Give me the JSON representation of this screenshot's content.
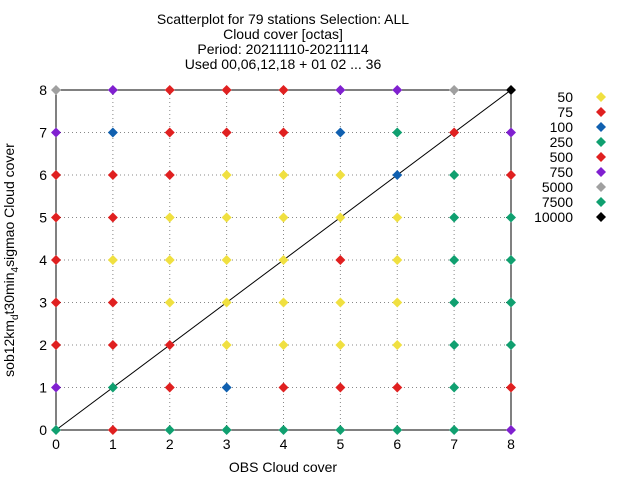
{
  "chart_data": {
    "type": "scatter",
    "title_lines": [
      "Scatterplot for   79 stations Selection: ALL",
      "Cloud cover [octas]",
      "Period: 20211110-20211114",
      "Used 00,06,12,18 + 01 02 ... 36"
    ],
    "xlabel": "OBS Cloud cover",
    "ylabel": "sob12km_d t30min_4 sigmao Cloud cover",
    "xlim": [
      0,
      8
    ],
    "ylim": [
      0,
      8
    ],
    "xticks": [
      "0",
      "1",
      "2",
      "3",
      "4",
      "5",
      "6",
      "7",
      "8"
    ],
    "yticks": [
      "0",
      "1",
      "2",
      "3",
      "4",
      "5",
      "6",
      "7",
      "8"
    ],
    "grid": true,
    "diagonal_line": true,
    "legend_position": "right",
    "legend": [
      {
        "label": "50",
        "color": "#f0e040"
      },
      {
        "label": "75",
        "color": "#e02020"
      },
      {
        "label": "100",
        "color": "#1060b0"
      },
      {
        "label": "250",
        "color": "#10a070"
      },
      {
        "label": "500",
        "color": "#e02020"
      },
      {
        "label": "750",
        "color": "#8020d0"
      },
      {
        "label": "5000",
        "color": "#a0a0a0"
      },
      {
        "label": "7500",
        "color": "#10a070"
      },
      {
        "label": "10000",
        "color": "#000000"
      }
    ],
    "points": [
      {
        "x": 0,
        "y": 8,
        "c": "#a0a0a0"
      },
      {
        "x": 1,
        "y": 8,
        "c": "#8020d0"
      },
      {
        "x": 2,
        "y": 8,
        "c": "#e02020"
      },
      {
        "x": 3,
        "y": 8,
        "c": "#e02020"
      },
      {
        "x": 4,
        "y": 8,
        "c": "#e02020"
      },
      {
        "x": 5,
        "y": 8,
        "c": "#8020d0"
      },
      {
        "x": 6,
        "y": 8,
        "c": "#8020d0"
      },
      {
        "x": 7,
        "y": 8,
        "c": "#a0a0a0"
      },
      {
        "x": 8,
        "y": 8,
        "c": "#000000"
      },
      {
        "x": 0,
        "y": 7,
        "c": "#8020d0"
      },
      {
        "x": 1,
        "y": 7,
        "c": "#1060b0"
      },
      {
        "x": 2,
        "y": 7,
        "c": "#e02020"
      },
      {
        "x": 3,
        "y": 7,
        "c": "#e02020"
      },
      {
        "x": 4,
        "y": 7,
        "c": "#e02020"
      },
      {
        "x": 5,
        "y": 7,
        "c": "#1060b0"
      },
      {
        "x": 6,
        "y": 7,
        "c": "#10a070"
      },
      {
        "x": 7,
        "y": 7,
        "c": "#e02020"
      },
      {
        "x": 8,
        "y": 7,
        "c": "#8020d0"
      },
      {
        "x": 0,
        "y": 6,
        "c": "#e02020"
      },
      {
        "x": 1,
        "y": 6,
        "c": "#e02020"
      },
      {
        "x": 2,
        "y": 6,
        "c": "#e02020"
      },
      {
        "x": 3,
        "y": 6,
        "c": "#f0e040"
      },
      {
        "x": 4,
        "y": 6,
        "c": "#f0e040"
      },
      {
        "x": 5,
        "y": 6,
        "c": "#f0e040"
      },
      {
        "x": 6,
        "y": 6,
        "c": "#1060b0"
      },
      {
        "x": 7,
        "y": 6,
        "c": "#10a070"
      },
      {
        "x": 8,
        "y": 6,
        "c": "#e02020"
      },
      {
        "x": 0,
        "y": 5,
        "c": "#e02020"
      },
      {
        "x": 1,
        "y": 5,
        "c": "#e02020"
      },
      {
        "x": 2,
        "y": 5,
        "c": "#f0e040"
      },
      {
        "x": 3,
        "y": 5,
        "c": "#f0e040"
      },
      {
        "x": 4,
        "y": 5,
        "c": "#f0e040"
      },
      {
        "x": 5,
        "y": 5,
        "c": "#f0e040"
      },
      {
        "x": 6,
        "y": 5,
        "c": "#f0e040"
      },
      {
        "x": 7,
        "y": 5,
        "c": "#10a070"
      },
      {
        "x": 8,
        "y": 5,
        "c": "#10a070"
      },
      {
        "x": 0,
        "y": 4,
        "c": "#e02020"
      },
      {
        "x": 1,
        "y": 4,
        "c": "#f0e040"
      },
      {
        "x": 2,
        "y": 4,
        "c": "#f0e040"
      },
      {
        "x": 3,
        "y": 4,
        "c": "#f0e040"
      },
      {
        "x": 4,
        "y": 4,
        "c": "#f0e040"
      },
      {
        "x": 5,
        "y": 4,
        "c": "#e02020"
      },
      {
        "x": 6,
        "y": 4,
        "c": "#f0e040"
      },
      {
        "x": 7,
        "y": 4,
        "c": "#10a070"
      },
      {
        "x": 8,
        "y": 4,
        "c": "#10a070"
      },
      {
        "x": 0,
        "y": 3,
        "c": "#e02020"
      },
      {
        "x": 1,
        "y": 3,
        "c": "#e02020"
      },
      {
        "x": 2,
        "y": 3,
        "c": "#f0e040"
      },
      {
        "x": 3,
        "y": 3,
        "c": "#f0e040"
      },
      {
        "x": 4,
        "y": 3,
        "c": "#f0e040"
      },
      {
        "x": 5,
        "y": 3,
        "c": "#f0e040"
      },
      {
        "x": 6,
        "y": 3,
        "c": "#f0e040"
      },
      {
        "x": 7,
        "y": 3,
        "c": "#10a070"
      },
      {
        "x": 8,
        "y": 3,
        "c": "#10a070"
      },
      {
        "x": 0,
        "y": 2,
        "c": "#e02020"
      },
      {
        "x": 1,
        "y": 2,
        "c": "#e02020"
      },
      {
        "x": 2,
        "y": 2,
        "c": "#e02020"
      },
      {
        "x": 3,
        "y": 2,
        "c": "#f0e040"
      },
      {
        "x": 4,
        "y": 2,
        "c": "#f0e040"
      },
      {
        "x": 5,
        "y": 2,
        "c": "#f0e040"
      },
      {
        "x": 6,
        "y": 2,
        "c": "#f0e040"
      },
      {
        "x": 7,
        "y": 2,
        "c": "#10a070"
      },
      {
        "x": 8,
        "y": 2,
        "c": "#10a070"
      },
      {
        "x": 0,
        "y": 1,
        "c": "#8020d0"
      },
      {
        "x": 1,
        "y": 1,
        "c": "#10a070"
      },
      {
        "x": 2,
        "y": 1,
        "c": "#e02020"
      },
      {
        "x": 3,
        "y": 1,
        "c": "#1060b0"
      },
      {
        "x": 4,
        "y": 1,
        "c": "#e02020"
      },
      {
        "x": 5,
        "y": 1,
        "c": "#e02020"
      },
      {
        "x": 6,
        "y": 1,
        "c": "#e02020"
      },
      {
        "x": 7,
        "y": 1,
        "c": "#10a070"
      },
      {
        "x": 8,
        "y": 1,
        "c": "#e02020"
      },
      {
        "x": 0,
        "y": 0,
        "c": "#10a070"
      },
      {
        "x": 1,
        "y": 0,
        "c": "#e02020"
      },
      {
        "x": 2,
        "y": 0,
        "c": "#10a070"
      },
      {
        "x": 3,
        "y": 0,
        "c": "#10a070"
      },
      {
        "x": 4,
        "y": 0,
        "c": "#10a070"
      },
      {
        "x": 5,
        "y": 0,
        "c": "#10a070"
      },
      {
        "x": 6,
        "y": 0,
        "c": "#10a070"
      },
      {
        "x": 7,
        "y": 0,
        "c": "#10a070"
      },
      {
        "x": 8,
        "y": 0,
        "c": "#8020d0"
      }
    ]
  }
}
